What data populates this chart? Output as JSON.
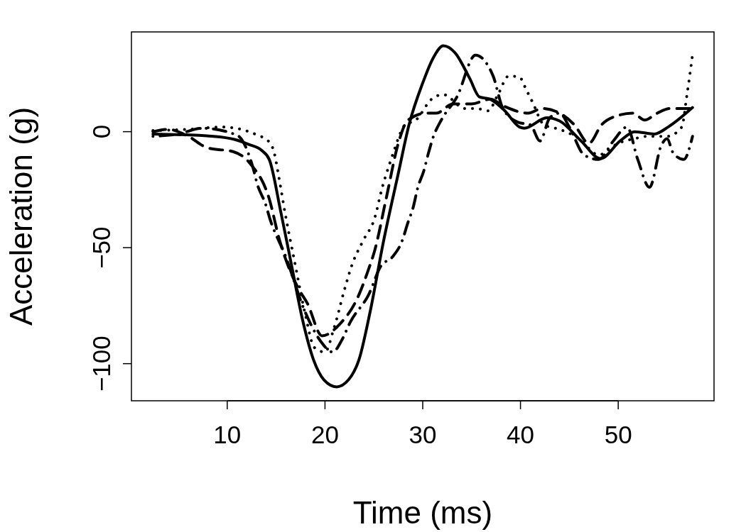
{
  "chart_data": {
    "type": "line",
    "xlabel": "Time (ms)",
    "ylabel": "Acceleration (g)",
    "xlim": [
      0.2,
      59.8
    ],
    "ylim": [
      -116,
      43
    ],
    "xticks": [
      10,
      20,
      30,
      40,
      50
    ],
    "yticks": [
      -100,
      -50,
      0
    ],
    "grid": false,
    "series": [
      {
        "color": "#000000",
        "line_style": "solid",
        "x": [
          2.4,
          8.6,
          10.8,
          12.2,
          13.5,
          14.3,
          15.5,
          16.6,
          17.7,
          18.8,
          19.9,
          21.2,
          22.4,
          23.5,
          24.6,
          26.0,
          27.5,
          28.6,
          30.0,
          31.1,
          32.1,
          33.3,
          34.8,
          35.8,
          36.9,
          38.4,
          39.9,
          40.4,
          42.7,
          44.0,
          46.2,
          48.2,
          50.2,
          51.7,
          53.7,
          55.1,
          57.6
        ],
        "values": [
          -1,
          -2,
          -3.4,
          -5.5,
          -8,
          -12,
          -35,
          -58,
          -81,
          -98,
          -107,
          -110,
          -107,
          -98,
          -78,
          -47,
          -18,
          3,
          21,
          32,
          37,
          34,
          23,
          15,
          14,
          9,
          2,
          1.5,
          6,
          4.6,
          -4,
          -11.6,
          -4,
          0,
          -1,
          2,
          10.4
        ]
      },
      {
        "color": "#000000",
        "line_style": "dashed",
        "x": [
          2.4,
          4,
          6,
          8,
          10.6,
          12.4,
          14.3,
          15.3,
          17.2,
          18.2,
          19.7,
          21.5,
          23.4,
          24.4,
          25.1,
          26.3,
          27.5,
          28.5,
          30.4,
          31.4,
          33.1,
          35,
          36.9,
          38.3,
          40.8,
          42.2,
          44,
          45.5,
          47,
          48.3,
          50,
          51.5,
          52.7,
          54,
          55.3,
          57,
          57.6
        ],
        "values": [
          0,
          1,
          -2,
          -7,
          -8.6,
          -14,
          -29,
          -46,
          -67,
          -74,
          -88,
          -83,
          -71,
          -60,
          -51,
          -28,
          -5,
          5,
          8,
          8,
          12,
          12,
          14,
          11,
          8,
          10,
          8,
          3,
          -5,
          3,
          7,
          8,
          5,
          8,
          10,
          10,
          10
        ]
      },
      {
        "color": "#000000",
        "line_style": "dotted",
        "x": [
          2.4,
          6,
          9.5,
          13.1,
          14.2,
          14.8,
          15.3,
          16,
          16.8,
          18,
          18.9,
          20,
          20.9,
          22,
          22.8,
          23.9,
          25.1,
          25.8,
          26.6,
          27,
          28.2,
          29.3,
          30.9,
          32.1,
          34.3,
          35.5,
          36.7,
          37.7,
          38.8,
          39.9,
          40.6,
          41.2,
          42.4,
          44,
          46,
          48,
          50,
          51.7,
          53,
          55,
          56.5,
          57,
          57.6
        ],
        "values": [
          0.5,
          1,
          2,
          -1.5,
          -4,
          -9,
          -20,
          -37,
          -54,
          -79,
          -93,
          -95,
          -85,
          -68,
          -57,
          -47,
          -37,
          -25,
          -14,
          -9,
          3,
          5,
          14,
          16,
          10,
          10,
          9,
          16,
          24,
          23.5,
          18,
          13,
          3,
          1,
          -3,
          -10,
          -5,
          -3,
          -2,
          -2,
          2,
          15,
          33
        ]
      },
      {
        "color": "#000000",
        "line_style": "dashdot",
        "x": [
          2.4,
          5,
          7.4,
          11,
          12.6,
          13.1,
          13.9,
          14.4,
          15.9,
          18,
          19.5,
          20.8,
          21.7,
          22.6,
          24.5,
          25.7,
          26.9,
          27.9,
          28.5,
          29,
          29.5,
          30.1,
          30.6,
          31.1,
          31.9,
          33.5,
          35.4,
          37.2,
          38.2,
          39.8,
          41,
          42,
          43,
          44,
          45,
          46.5,
          48,
          49.5,
          50.9,
          52,
          53.2,
          54.4,
          55,
          55.6,
          56.7,
          57.6
        ],
        "values": [
          -2,
          -1,
          1.5,
          -1.5,
          -15,
          -23,
          -31,
          -38,
          -53,
          -78,
          -90,
          -95,
          -90,
          -82,
          -70,
          -58,
          -54,
          -47,
          -39,
          -33,
          -24,
          -17,
          -9,
          -2,
          5,
          15,
          33,
          24,
          10,
          4,
          3,
          -4,
          6,
          8,
          2,
          -10,
          -12,
          -4,
          2,
          -12,
          -24,
          -6,
          -3,
          -9,
          -12,
          -2
        ]
      }
    ]
  }
}
